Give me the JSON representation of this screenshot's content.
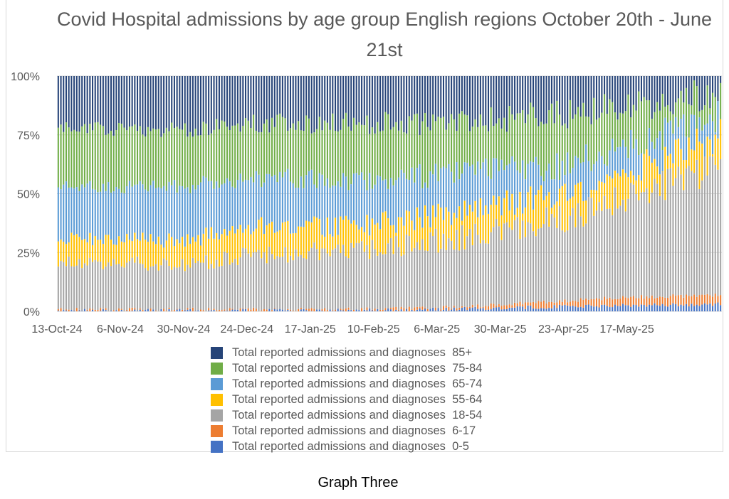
{
  "title": "Covid Hospital admissions by age group English regions October 20th - June 21st",
  "caption": "Graph Three",
  "chart_data": {
    "type": "bar",
    "stacking": "percent",
    "title": "Covid Hospital admissions by age group English regions October 20th - June 21st",
    "xlabel": "",
    "ylabel": "",
    "ylim": [
      0,
      100
    ],
    "y_ticks": [
      "0%",
      "25%",
      "50%",
      "75%",
      "100%"
    ],
    "x_tick_labels": [
      "13-Oct-24",
      "6-Nov-24",
      "30-Nov-24",
      "24-Dec-24",
      "17-Jan-25",
      "10-Feb-25",
      "6-Mar-25",
      "30-Mar-25",
      "23-Apr-25",
      "17-May-25"
    ],
    "x_start": "13-Oct-24",
    "x_end": "21-Jun-25",
    "days": 252,
    "legend_position": "bottom",
    "series": [
      {
        "name": "Total reported admissions and diagnoses  0-5",
        "color": "#4472C4"
      },
      {
        "name": "Total reported admissions and diagnoses  6-17",
        "color": "#ED7D31"
      },
      {
        "name": "Total reported admissions and diagnoses  18-54",
        "color": "#A5A5A5"
      },
      {
        "name": "Total reported admissions and diagnoses  55-64",
        "color": "#FFC000"
      },
      {
        "name": "Total reported admissions and diagnoses  65-74",
        "color": "#5B9BD5"
      },
      {
        "name": "Total reported admissions and diagnoses  75-84",
        "color": "#70AD47"
      },
      {
        "name": "Total reported admissions and diagnoses  85+",
        "color": "#264478"
      }
    ],
    "approx_cumulative_shares_pct": {
      "x": [
        "13-Oct-24",
        "30-Nov-24",
        "24-Dec-24",
        "17-Jan-25",
        "10-Feb-25",
        "6-Mar-25",
        "30-Mar-25",
        "23-Apr-25",
        "17-May-25",
        "21-Jun-25"
      ],
      "upto_0_5": [
        0.3,
        0.3,
        0.3,
        0.3,
        0.5,
        0.8,
        1.5,
        2.0,
        2.5,
        3.0
      ],
      "upto_6_17": [
        0.8,
        0.8,
        0.8,
        0.8,
        1.0,
        1.5,
        3.0,
        4.5,
        6.0,
        7.0
      ],
      "upto_18_54": [
        21,
        20,
        24,
        25,
        26,
        30,
        34,
        40,
        48,
        62
      ],
      "upto_55_64": [
        31,
        30,
        36,
        36,
        37,
        41,
        46,
        50,
        60,
        75
      ],
      "upto_65_74": [
        53,
        53,
        57,
        56,
        56,
        58,
        60,
        62,
        70,
        84
      ],
      "upto_75_84": [
        78,
        77,
        80,
        80,
        80,
        80,
        82,
        84,
        87,
        93
      ],
      "upto_85_plus": [
        100,
        100,
        100,
        100,
        100,
        100,
        100,
        100,
        100,
        100
      ]
    }
  }
}
